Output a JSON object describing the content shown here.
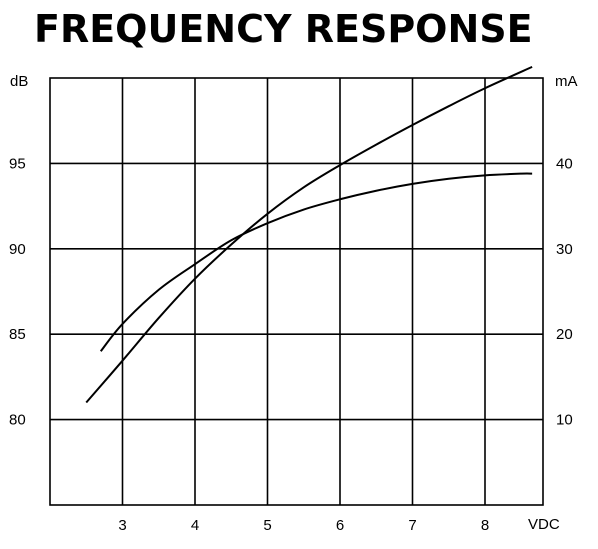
{
  "chart_data": {
    "type": "line",
    "title": "FREQUENCY RESPONSE",
    "xlabel": "VDC",
    "ylabel_left": "dB",
    "ylabel_right": "mA",
    "xlim": [
      2,
      8.8
    ],
    "ylim_left": [
      75,
      100
    ],
    "ylim_right": [
      0,
      50
    ],
    "x_ticks": [
      3,
      4,
      5,
      6,
      7,
      8
    ],
    "left_ticks": [
      80,
      85,
      90,
      95
    ],
    "right_ticks": [
      10,
      20,
      30,
      40
    ],
    "grid": true,
    "series": [
      {
        "axis": "left",
        "color": "#000000",
        "x": [
          2.7,
          3.0,
          3.5,
          4.0,
          4.5,
          5.0,
          5.5,
          6.0,
          6.5,
          7.0,
          7.5,
          8.0,
          8.5,
          8.65
        ],
        "y": [
          84.0,
          85.6,
          87.6,
          89.1,
          90.5,
          91.5,
          92.3,
          92.9,
          93.4,
          93.8,
          94.1,
          94.3,
          94.4,
          94.4
        ]
      },
      {
        "axis": "right",
        "color": "#000000",
        "x": [
          2.5,
          3.0,
          3.5,
          4.0,
          4.5,
          5.0,
          5.5,
          6.0,
          6.5,
          7.0,
          7.5,
          8.0,
          8.65
        ],
        "y": [
          12.0,
          16.9,
          21.9,
          26.5,
          30.5,
          34.1,
          37.2,
          39.8,
          42.2,
          44.5,
          46.7,
          48.8,
          51.3
        ]
      }
    ]
  }
}
